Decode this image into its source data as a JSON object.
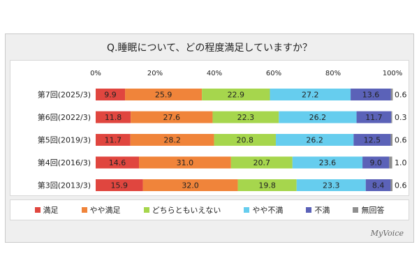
{
  "title": "Q.睡眠について、どの程度満足していますか？",
  "logo": "MyVoice",
  "colors": [
    "#e0463f",
    "#f0843a",
    "#a6d64d",
    "#66cdee",
    "#5b62b8",
    "#8f8f8f"
  ],
  "chart_data": {
    "type": "bar",
    "orientation": "horizontal",
    "stacked": true,
    "title": "Q.睡眠について、どの程度満足していますか？",
    "xlim": [
      0,
      100
    ],
    "x_ticks": [
      "0%",
      "20%",
      "40%",
      "60%",
      "80%",
      "100%"
    ],
    "categories": [
      "第7回(2025/3)",
      "第6回(2022/3)",
      "第5回(2019/3)",
      "第4回(2016/3)",
      "第3回(2013/3)"
    ],
    "series": [
      {
        "name": "満足",
        "values": [
          9.9,
          11.8,
          11.7,
          14.6,
          15.9
        ]
      },
      {
        "name": "やや満足",
        "values": [
          25.9,
          27.6,
          28.2,
          31.0,
          32.0
        ]
      },
      {
        "name": "どちらともいえない",
        "values": [
          22.9,
          22.3,
          20.8,
          20.7,
          19.8
        ]
      },
      {
        "name": "やや不満",
        "values": [
          27.2,
          26.2,
          26.2,
          23.6,
          23.3
        ]
      },
      {
        "name": "不満",
        "values": [
          13.6,
          11.7,
          12.5,
          9.0,
          8.4
        ]
      },
      {
        "name": "無回答",
        "values": [
          0.6,
          0.3,
          0.6,
          1.0,
          0.6
        ]
      }
    ],
    "legend_position": "bottom"
  }
}
